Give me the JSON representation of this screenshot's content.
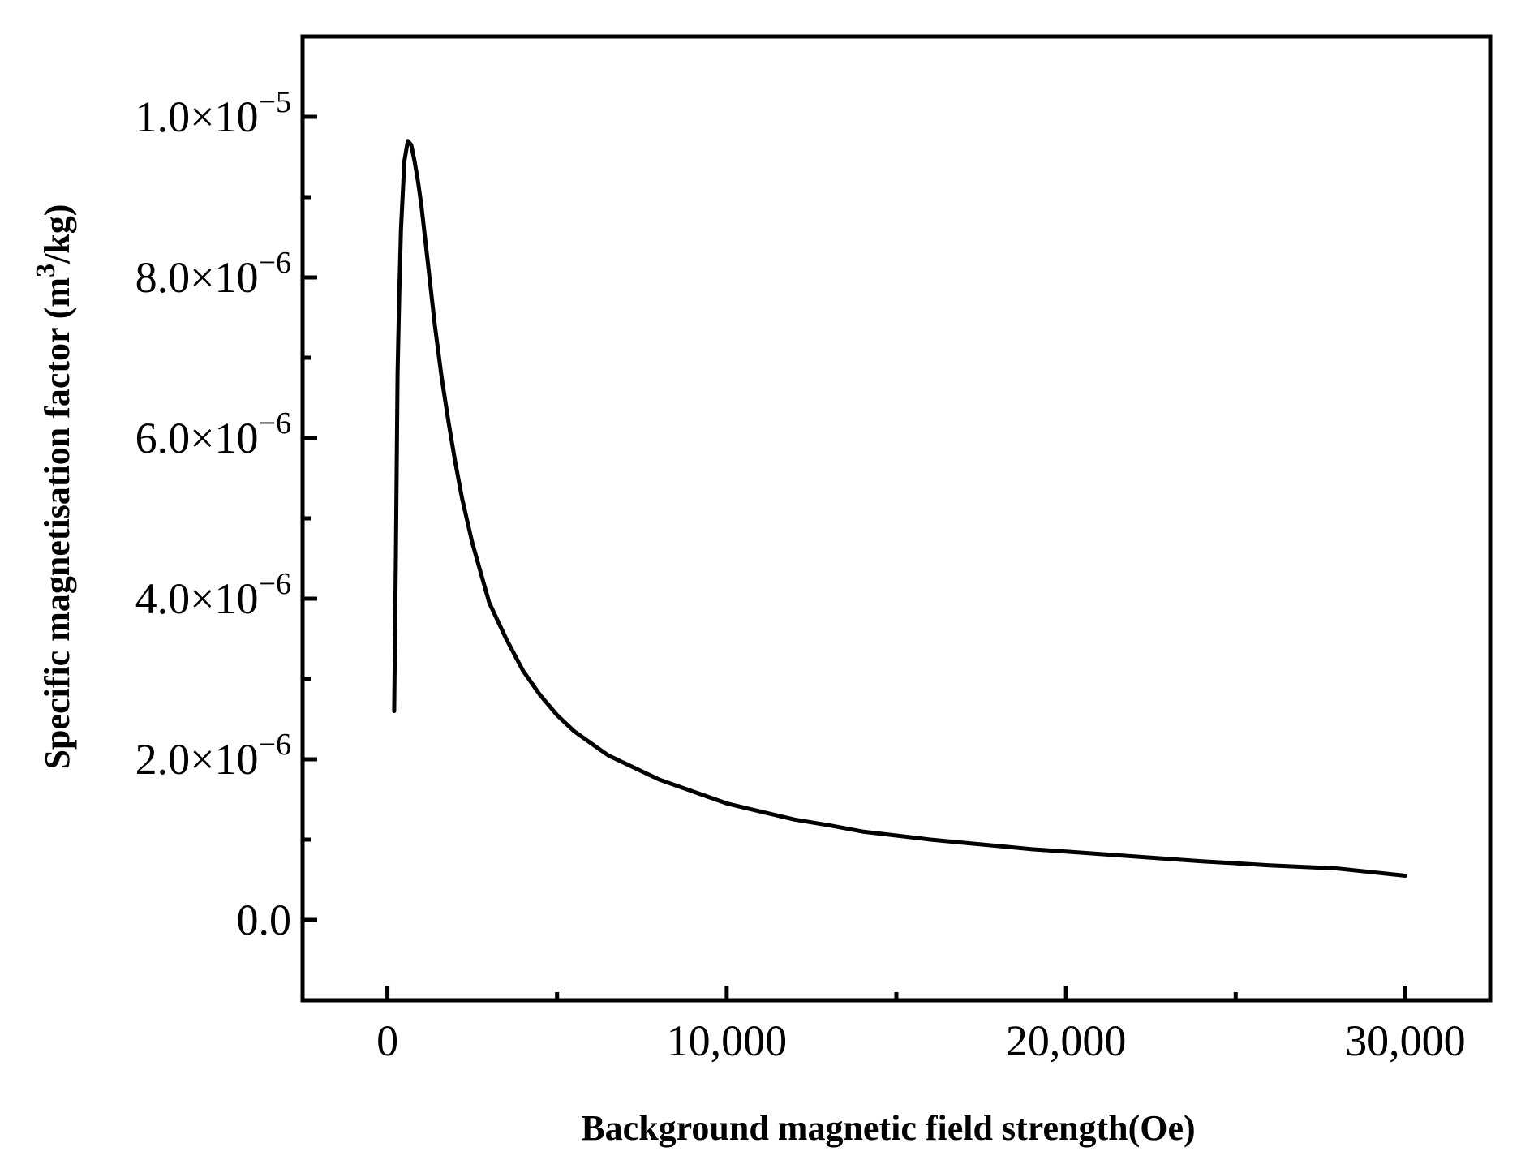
{
  "chart_data": {
    "type": "line",
    "xlabel": "Background magnetic field strength(Oe)",
    "ylabel": {
      "prefix": "Specific magnetisation factor  (m",
      "sup": "3",
      "suffix": "/kg)"
    },
    "xlim": [
      -2500,
      32500
    ],
    "ylim": [
      -1e-06,
      1.1e-05
    ],
    "x_ticks": [
      0,
      10000,
      20000,
      30000
    ],
    "x_tick_labels": [
      "0",
      "10,000",
      "20,000",
      "30,000"
    ],
    "x_minor_ticks": [
      5000,
      15000,
      25000
    ],
    "y_ticks": [
      0,
      2e-06,
      4e-06,
      6e-06,
      8e-06,
      1e-05
    ],
    "y_tick_labels": [
      {
        "mantissa": "0.0",
        "exp": ""
      },
      {
        "mantissa": "2.0×10",
        "exp": "−6"
      },
      {
        "mantissa": "4.0×10",
        "exp": "−6"
      },
      {
        "mantissa": "6.0×10",
        "exp": "−6"
      },
      {
        "mantissa": "8.0×10",
        "exp": "−6"
      },
      {
        "mantissa": "1.0×10",
        "exp": "−5"
      }
    ],
    "y_minor_ticks": [
      1e-06,
      3e-06,
      5e-06,
      7e-06,
      9e-06
    ],
    "grid": false,
    "color": "#000000",
    "series": [
      {
        "x": [
          200,
          250,
          300,
          350,
          400,
          500,
          600,
          700,
          800,
          900,
          1000,
          1200,
          1400,
          1600,
          1800,
          2000,
          2200,
          2500,
          2800,
          3000,
          3500,
          4000,
          4500,
          5000,
          5500,
          6000,
          6500,
          7000,
          8000,
          9000,
          10000,
          11000,
          12000,
          13000,
          14000,
          15000,
          16000,
          17000,
          18000,
          19000,
          20000,
          22000,
          24000,
          26000,
          28000,
          30000
        ],
        "y": [
          2.6e-06,
          4.5e-06,
          6.8e-06,
          7.8e-06,
          8.6e-06,
          9.45e-06,
          9.7e-06,
          9.65e-06,
          9.45e-06,
          9.2e-06,
          8.9e-06,
          8.15e-06,
          7.4e-06,
          6.75e-06,
          6.2e-06,
          5.7e-06,
          5.25e-06,
          4.7e-06,
          4.25e-06,
          3.95e-06,
          3.5e-06,
          3.1e-06,
          2.8e-06,
          2.55e-06,
          2.35e-06,
          2.2e-06,
          2.05e-06,
          1.95e-06,
          1.75e-06,
          1.6e-06,
          1.45e-06,
          1.35e-06,
          1.25e-06,
          1.18e-06,
          1.1e-06,
          1.05e-06,
          1e-06,
          9.6e-07,
          9.2e-07,
          8.8e-07,
          8.5e-07,
          7.9e-07,
          7.3e-07,
          6.8e-07,
          6.4e-07,
          5.5e-07
        ]
      }
    ]
  }
}
